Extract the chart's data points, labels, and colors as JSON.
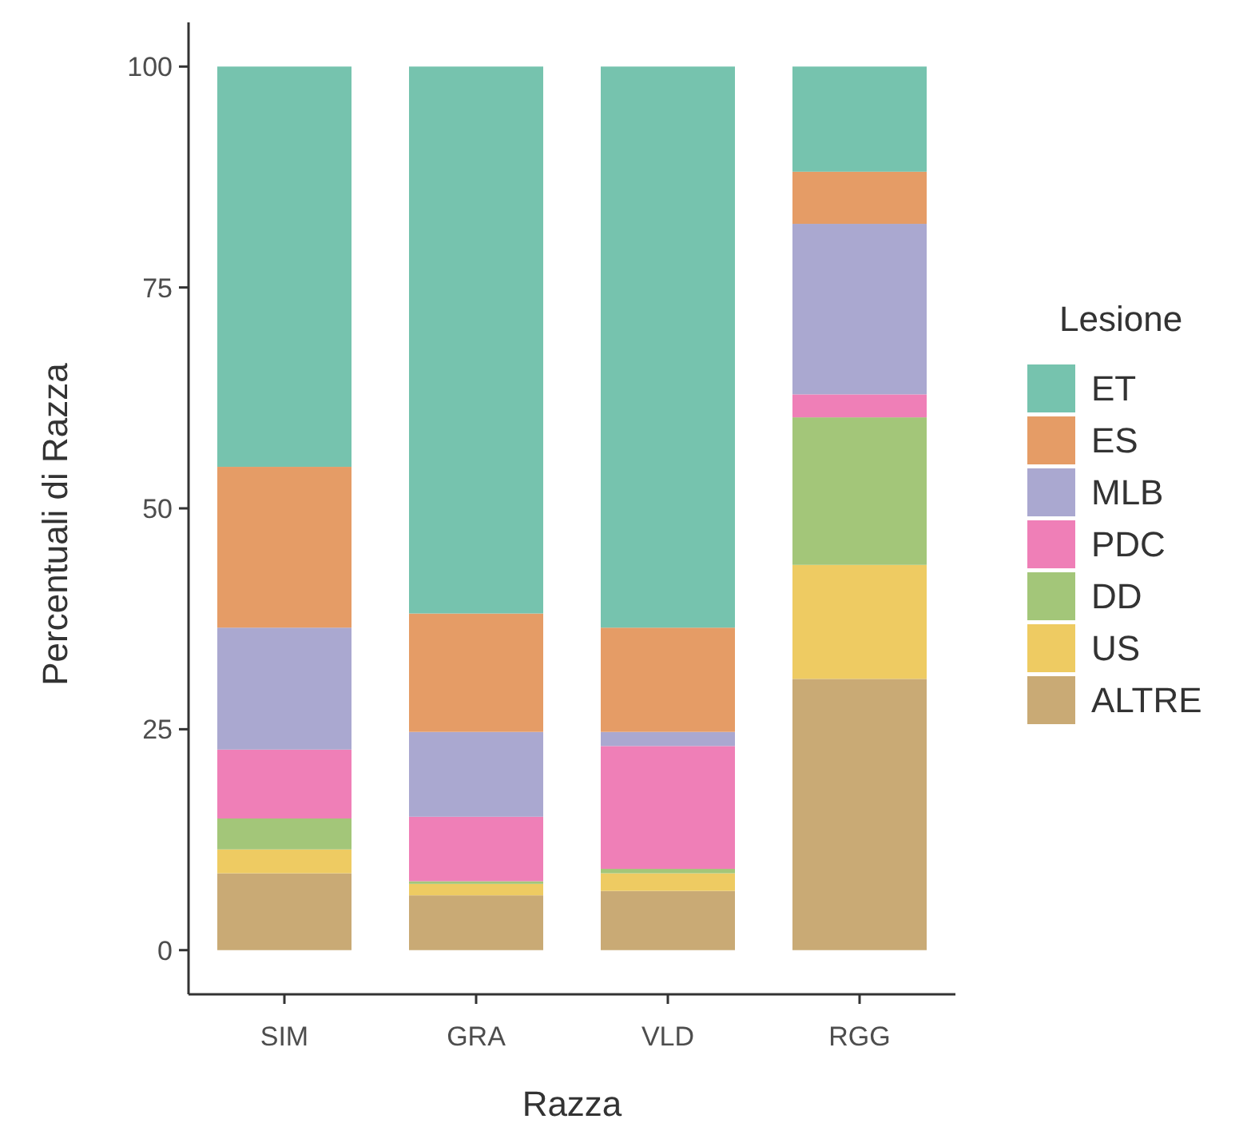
{
  "chart_data": {
    "type": "bar",
    "stacked": true,
    "xlabel": "Razza",
    "ylabel": "Percentuali di Razza",
    "legend_title": "Lesione",
    "legend": "right",
    "grid": false,
    "categories": [
      "SIM",
      "GRA",
      "VLD",
      "RGG"
    ],
    "ylim": [
      -5,
      105
    ],
    "yticks": [
      0,
      25,
      50,
      75,
      100
    ],
    "series": [
      {
        "name": "ALTRE",
        "color": "#c9aa75",
        "values": [
          8.7,
          6.2,
          6.7,
          30.7
        ]
      },
      {
        "name": "US",
        "color": "#eecb62",
        "values": [
          2.7,
          1.3,
          2.0,
          12.9
        ]
      },
      {
        "name": "DD",
        "color": "#a3c679",
        "values": [
          3.5,
          0.3,
          0.5,
          16.7
        ]
      },
      {
        "name": "PDC",
        "color": "#ef7fb7",
        "values": [
          7.8,
          7.3,
          13.9,
          2.6
        ]
      },
      {
        "name": "MLB",
        "color": "#aaa8d0",
        "values": [
          13.8,
          9.6,
          1.6,
          19.3
        ]
      },
      {
        "name": "ES",
        "color": "#e59c66",
        "values": [
          18.2,
          13.4,
          11.8,
          5.9
        ]
      },
      {
        "name": "ET",
        "color": "#76c3ae",
        "values": [
          45.3,
          61.9,
          63.5,
          11.9
        ]
      }
    ]
  }
}
